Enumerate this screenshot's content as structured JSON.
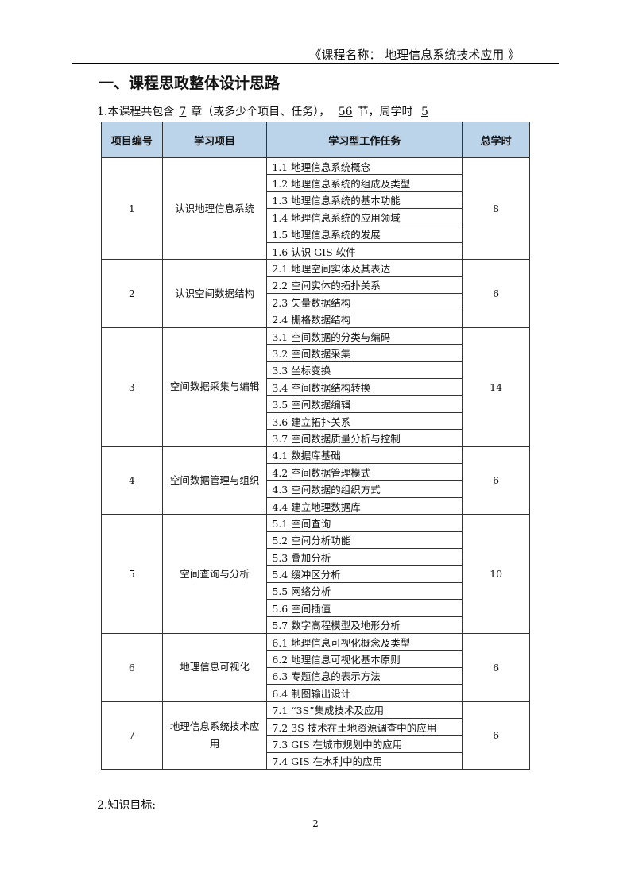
{
  "header": {
    "prefix": "《课程名称：",
    "course": "地理信息系统技术应用",
    "suffix": "》"
  },
  "title": "一、课程思政整体设计思路",
  "intro": {
    "t1": "1.本课程共包含",
    "chapters": "7",
    "t2": "章（或多少个项目、任务），",
    "sections": "56",
    "t3": "节，周学时",
    "weekly_hours": "5"
  },
  "table": {
    "headers": [
      "项目编号",
      "学习项目",
      "学习型工作任务",
      "总学时"
    ],
    "projects": [
      {
        "id": "1",
        "name": "认识地理信息系统",
        "hours": "8",
        "tasks": [
          "1.1 地理信息系统概念",
          "1.2 地理信息系统的组成及类型",
          "1.3 地理信息系统的基本功能",
          "1.4 地理信息系统的应用领域",
          "1.5 地理信息系统的发展",
          "1.6 认识 GIS 软件"
        ]
      },
      {
        "id": "2",
        "name": "认识空间数据结构",
        "hours": "6",
        "tasks": [
          "2.1 地理空间实体及其表达",
          "2.2 空间实体的拓扑关系",
          "2.3 矢量数据结构",
          "2.4 栅格数据结构"
        ]
      },
      {
        "id": "3",
        "name": "空间数据采集与编辑",
        "hours": "14",
        "tasks": [
          "3.1 空间数据的分类与编码",
          "3.2 空间数据采集",
          "3.3 坐标变换",
          "3.4 空间数据结构转换",
          "3.5 空间数据编辑",
          "3.6 建立拓扑关系",
          "3.7 空间数据质量分析与控制"
        ]
      },
      {
        "id": "4",
        "name": "空间数据管理与组织",
        "hours": "6",
        "tasks": [
          "4.1 数据库基础",
          "4.2 空间数据管理模式",
          "4.3 空间数据的组织方式",
          "4.4 建立地理数据库"
        ]
      },
      {
        "id": "5",
        "name": "空间查询与分析",
        "hours": "10",
        "tasks": [
          "5.1 空间查询",
          "5.2 空间分析功能",
          "5.3 叠加分析",
          "5.4 缓冲区分析",
          "5.5 网络分析",
          "5.6 空间插值",
          "5.7 数字高程模型及地形分析"
        ]
      },
      {
        "id": "6",
        "name": "地理信息可视化",
        "hours": "6",
        "tasks": [
          "6.1 地理信息可视化概念及类型",
          "6.2 地理信息可视化基本原则",
          "6.3 专题信息的表示方法",
          "6.4 制图输出设计"
        ]
      },
      {
        "id": "7",
        "name": "地理信息系统技术应用",
        "hours": "6",
        "tasks": [
          "7.1 “3S”集成技术及应用",
          "7.2 3S 技术在土地资源调查中的应用",
          "7.3 GIS 在城市规划中的应用",
          "7.4 GIS 在水利中的应用"
        ]
      }
    ]
  },
  "knowledge_heading": "2.知识目标:",
  "page_number": "2"
}
